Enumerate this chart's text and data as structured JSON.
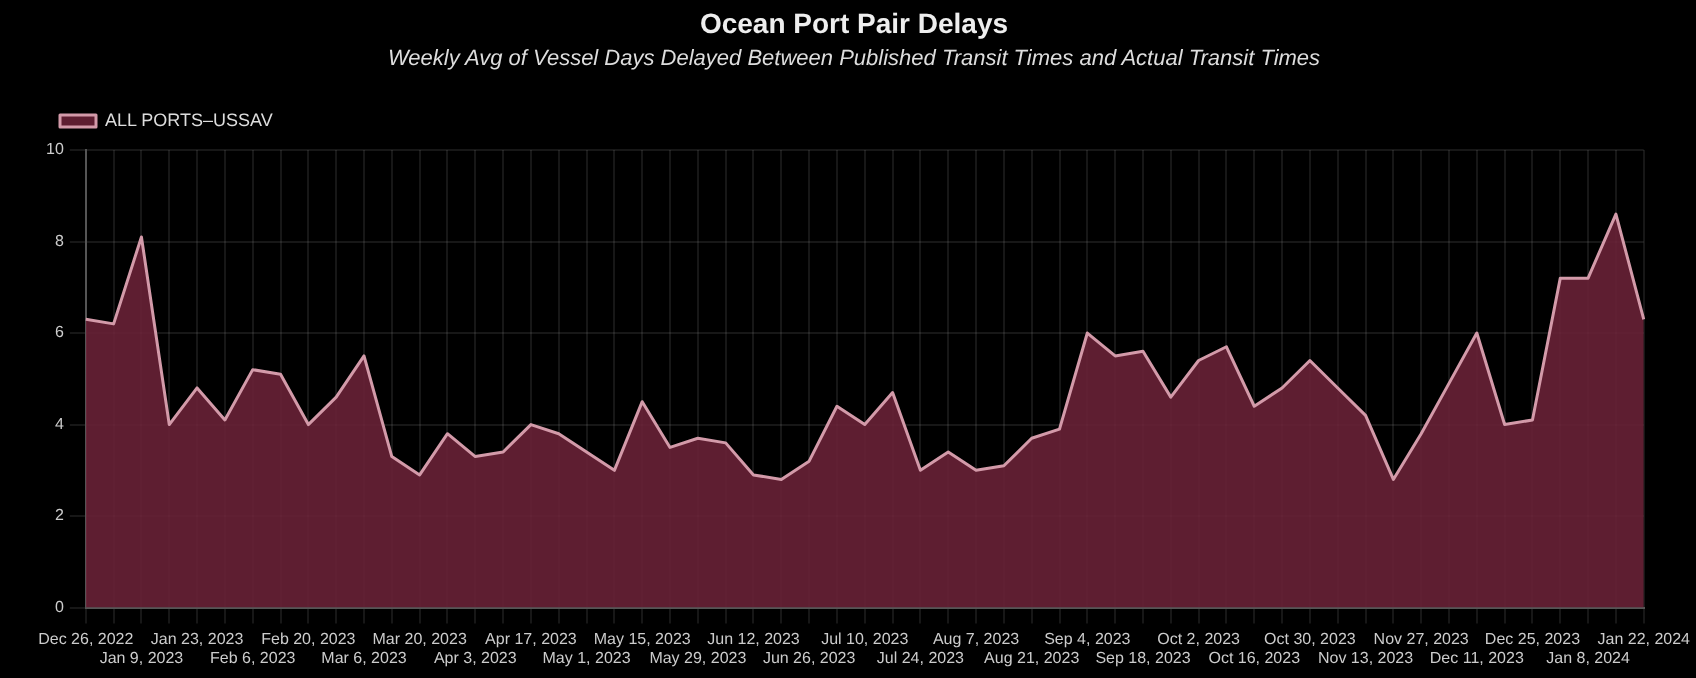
{
  "chart_data": {
    "type": "area",
    "title": "Ocean Port Pair Delays",
    "subtitle": "Weekly Avg of Vessel Days Delayed Between Published Transit Times and Actual Transit Times",
    "categories": [
      "Dec 26, 2022",
      null,
      "Jan 9, 2023",
      null,
      "Jan 23, 2023",
      null,
      "Feb 6, 2023",
      null,
      "Feb 20, 2023",
      null,
      "Mar 6, 2023",
      null,
      "Mar 20, 2023",
      null,
      "Apr 3, 2023",
      null,
      "Apr 17, 2023",
      null,
      "May 1, 2023",
      null,
      "May 15, 2023",
      null,
      "May 29, 2023",
      null,
      "Jun 12, 2023",
      null,
      "Jun 26, 2023",
      null,
      "Jul 10, 2023",
      null,
      "Jul 24, 2023",
      null,
      "Aug 7, 2023",
      null,
      "Aug 21, 2023",
      null,
      "Sep 4, 2023",
      null,
      "Sep 18, 2023",
      null,
      "Oct 2, 2023",
      null,
      "Oct 16, 2023",
      null,
      "Oct 30, 2023",
      null,
      "Nov 13, 2023",
      null,
      "Nov 27, 2023",
      null,
      "Dec 11, 2023",
      null,
      "Dec 25, 2023",
      null,
      "Jan 8, 2024",
      null,
      "Jan 22, 2024"
    ],
    "series": [
      {
        "name": "ALL PORTS–USSAV",
        "color": "#6b2238",
        "values": [
          6.3,
          6.2,
          8.1,
          4.0,
          4.8,
          4.1,
          5.2,
          5.1,
          4.0,
          4.6,
          5.5,
          3.3,
          2.9,
          3.8,
          3.3,
          3.4,
          4.0,
          3.8,
          3.4,
          3.0,
          4.5,
          3.5,
          3.7,
          3.6,
          2.9,
          2.8,
          3.2,
          4.4,
          4.0,
          4.7,
          3.0,
          3.4,
          3.0,
          3.1,
          3.7,
          3.9,
          6.0,
          5.5,
          5.6,
          4.6,
          5.4,
          5.7,
          4.4,
          4.8,
          5.4,
          4.8,
          4.2,
          2.8,
          3.8,
          4.9,
          6.0,
          4.0,
          4.1,
          7.2,
          7.2,
          8.6,
          6.3
        ]
      }
    ],
    "ylim": [
      0,
      10
    ],
    "yticks": [
      0,
      2,
      4,
      6,
      8,
      10
    ],
    "grid": true,
    "legend": "top left",
    "marker": "none"
  }
}
